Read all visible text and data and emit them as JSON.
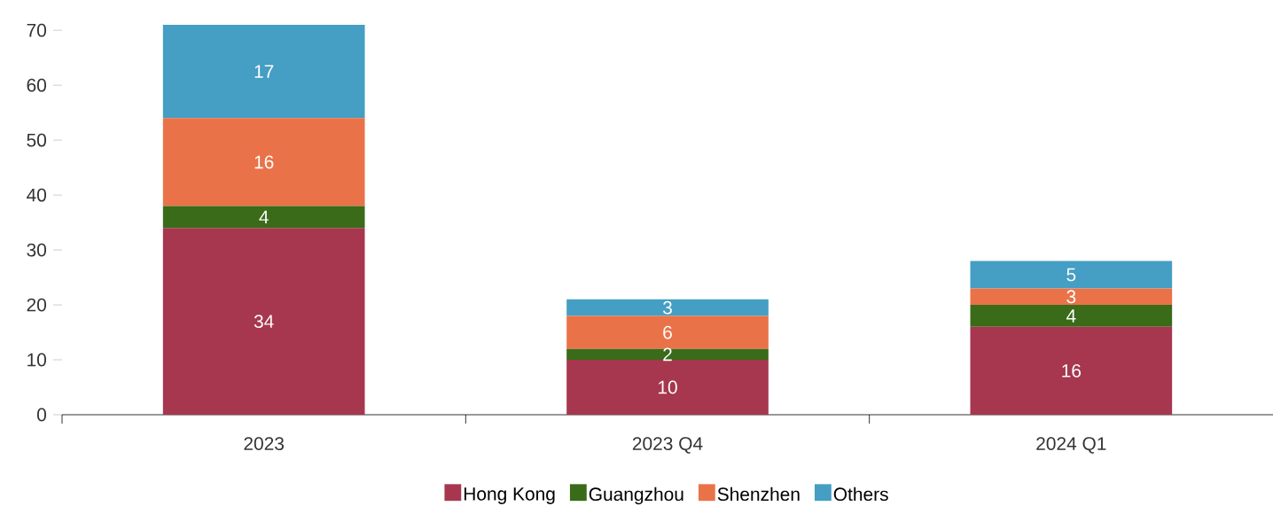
{
  "chart_data": {
    "type": "bar",
    "stacked": true,
    "categories": [
      "2023",
      "2023 Q4",
      "2024 Q1"
    ],
    "series": [
      {
        "name": "Hong Kong",
        "color": "#a6374f",
        "values": [
          34,
          10,
          16
        ]
      },
      {
        "name": "Guangzhou",
        "color": "#3a6b18",
        "values": [
          4,
          2,
          4
        ]
      },
      {
        "name": "Shenzhen",
        "color": "#ea7248",
        "values": [
          16,
          6,
          3
        ]
      },
      {
        "name": "Others",
        "color": "#459ec3",
        "values": [
          17,
          3,
          5
        ]
      }
    ],
    "ylim": [
      0,
      71
    ],
    "yticks": [
      0,
      10,
      20,
      30,
      40,
      50,
      60,
      70
    ],
    "data_labels": true,
    "legend": "bottom",
    "grid": false
  }
}
